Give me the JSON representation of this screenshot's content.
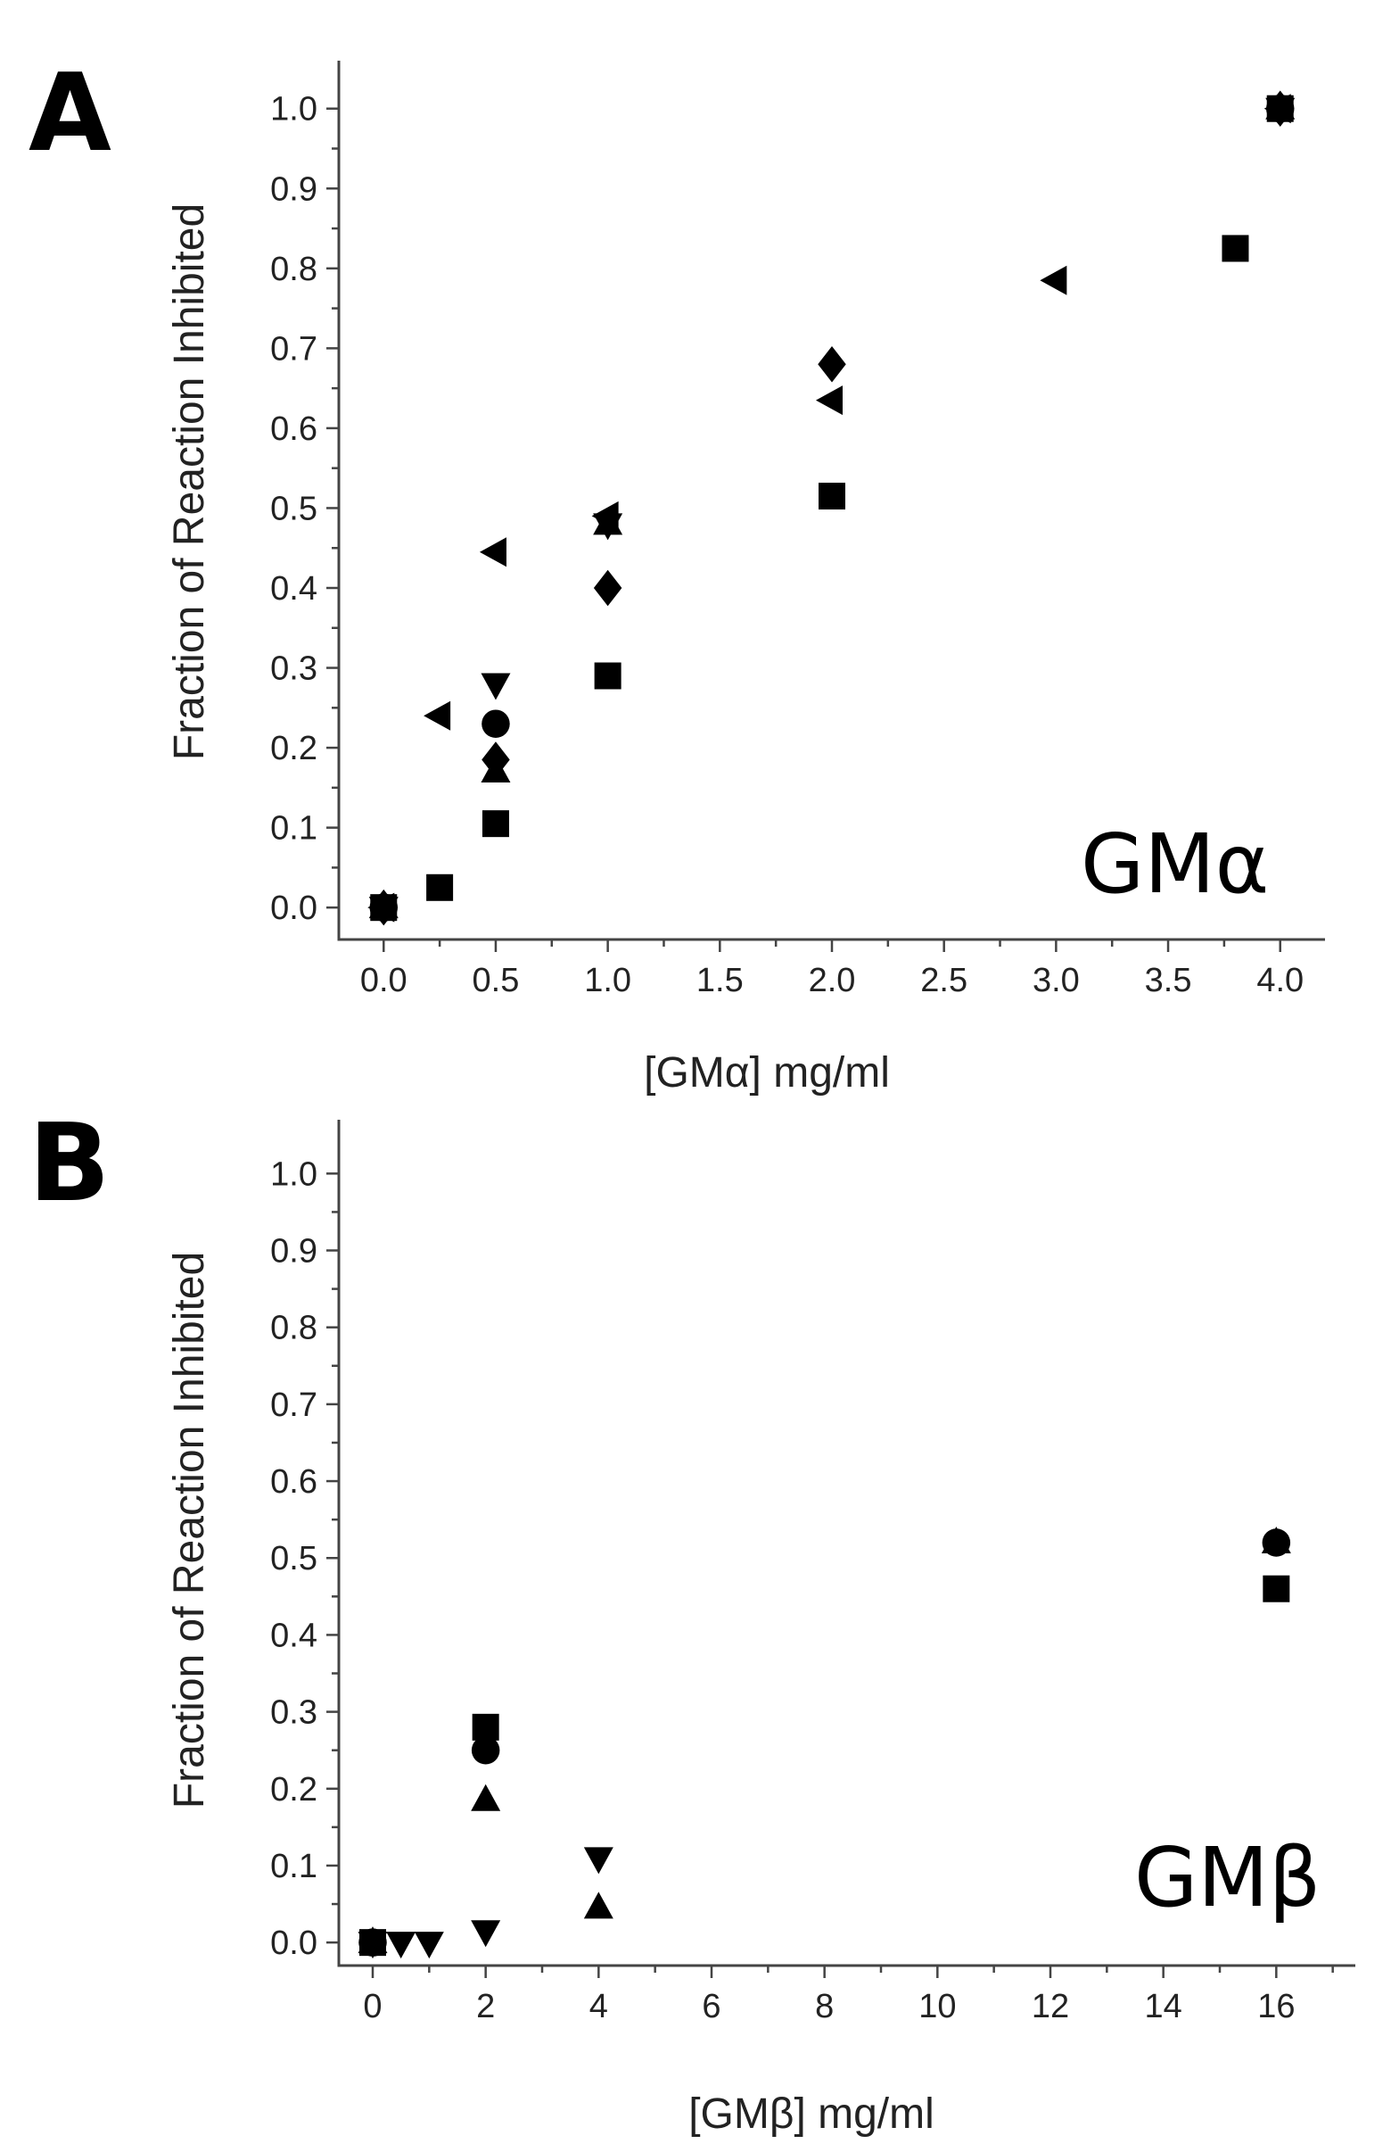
{
  "chart_data": [
    {
      "panel": "A",
      "type": "scatter",
      "inset_label": "GMα",
      "xlabel": "[GMα] mg/ml",
      "ylabel": "Fraction of Reaction Inhibited",
      "xlim": [
        -0.2,
        4.2
      ],
      "ylim": [
        -0.04,
        1.06
      ],
      "x_ticks": [
        0.0,
        0.5,
        1.0,
        1.5,
        2.0,
        2.5,
        3.0,
        3.5,
        4.0
      ],
      "x_tick_labels": [
        "0.0",
        "0.5",
        "1.0",
        "1.5",
        "2.0",
        "2.5",
        "3.0",
        "3.5",
        "4.0"
      ],
      "y_ticks": [
        0.0,
        0.1,
        0.2,
        0.3,
        0.4,
        0.5,
        0.6,
        0.7,
        0.8,
        0.9,
        1.0
      ],
      "y_tick_labels": [
        "0.0",
        "0.1",
        "0.2",
        "0.3",
        "0.4",
        "0.5",
        "0.6",
        "0.7",
        "0.8",
        "0.9",
        "1.0"
      ],
      "grid": false,
      "series": [
        {
          "marker": "square",
          "points": [
            [
              0,
              0
            ],
            [
              0.25,
              0.025
            ],
            [
              0.5,
              0.105
            ],
            [
              1.0,
              0.29
            ],
            [
              2.0,
              0.515
            ],
            [
              3.8,
              0.825
            ],
            [
              4.0,
              1.0
            ]
          ]
        },
        {
          "marker": "circle",
          "points": [
            [
              0,
              0
            ],
            [
              0.5,
              0.23
            ],
            [
              4.0,
              1.0
            ]
          ]
        },
        {
          "marker": "triangle-up",
          "points": [
            [
              0,
              0
            ],
            [
              0.5,
              0.17
            ],
            [
              1.0,
              0.48
            ],
            [
              4.0,
              1.0
            ]
          ]
        },
        {
          "marker": "triangle-down",
          "points": [
            [
              0,
              0
            ],
            [
              0.5,
              0.28
            ],
            [
              1.0,
              0.48
            ],
            [
              4.0,
              1.0
            ]
          ]
        },
        {
          "marker": "diamond",
          "points": [
            [
              0,
              0
            ],
            [
              0.5,
              0.185
            ],
            [
              1.0,
              0.4
            ],
            [
              2.0,
              0.68
            ],
            [
              4.0,
              1.0
            ]
          ]
        },
        {
          "marker": "triangle-left",
          "points": [
            [
              0,
              0
            ],
            [
              0.25,
              0.24
            ],
            [
              0.5,
              0.445
            ],
            [
              1.0,
              0.49
            ],
            [
              2.0,
              0.635
            ],
            [
              3.0,
              0.785
            ],
            [
              4.0,
              1.0
            ]
          ]
        }
      ]
    },
    {
      "panel": "B",
      "type": "scatter",
      "inset_label": "GMβ",
      "xlabel": "[GMβ] mg/ml",
      "ylabel": "Fraction of Reaction Inhibited",
      "xlim": [
        -0.6,
        17.4
      ],
      "ylim": [
        -0.03,
        1.07
      ],
      "x_ticks": [
        0,
        2,
        4,
        6,
        8,
        10,
        12,
        14,
        16
      ],
      "x_tick_labels": [
        "0",
        "2",
        "4",
        "6",
        "8",
        "10",
        "12",
        "14",
        "16"
      ],
      "y_ticks": [
        0.0,
        0.1,
        0.2,
        0.3,
        0.4,
        0.5,
        0.6,
        0.7,
        0.8,
        0.9,
        1.0
      ],
      "y_tick_labels": [
        "0.0",
        "0.1",
        "0.2",
        "0.3",
        "0.4",
        "0.5",
        "0.6",
        "0.7",
        "0.8",
        "0.9",
        "1.0"
      ],
      "grid": false,
      "series": [
        {
          "marker": "square",
          "points": [
            [
              0,
              0
            ],
            [
              2,
              0.28
            ],
            [
              16,
              0.46
            ]
          ]
        },
        {
          "marker": "circle",
          "points": [
            [
              0,
              0
            ],
            [
              2,
              0.25
            ],
            [
              16,
              0.52
            ]
          ]
        },
        {
          "marker": "triangle-up",
          "points": [
            [
              0,
              0
            ],
            [
              2,
              0.185
            ],
            [
              4,
              0.045
            ],
            [
              16,
              0.52
            ]
          ]
        },
        {
          "marker": "triangle-down",
          "points": [
            [
              0,
              0
            ],
            [
              0.5,
              0
            ],
            [
              1,
              0
            ],
            [
              2,
              0.015
            ],
            [
              4,
              0.11
            ]
          ]
        }
      ]
    }
  ]
}
